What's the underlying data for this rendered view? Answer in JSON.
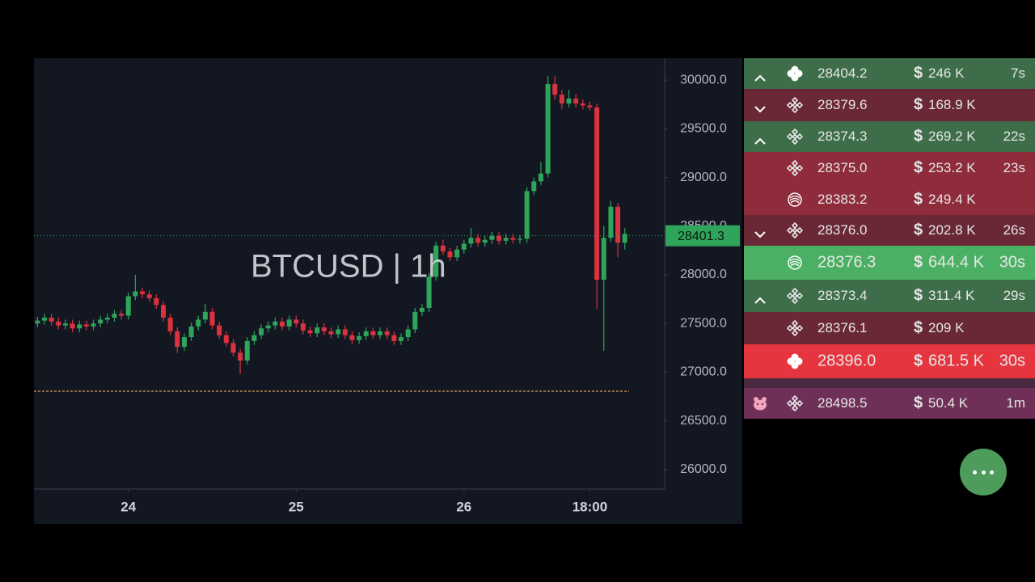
{
  "chart_data": {
    "type": "candlestick",
    "title": "BTCUSD | 1h",
    "x": [
      -13,
      -12,
      -11,
      -10,
      -9,
      -8,
      -7,
      -6,
      -5,
      -4,
      -3,
      -2,
      -1,
      0,
      1,
      2,
      3,
      4,
      5,
      6,
      7,
      8,
      9,
      10,
      11,
      12,
      13,
      14,
      15,
      16,
      17,
      18,
      19,
      20,
      21,
      22,
      23,
      24,
      25,
      26,
      27,
      28,
      29,
      30,
      31,
      32,
      33,
      34,
      35,
      36,
      37,
      38,
      39,
      40,
      41,
      42,
      43,
      44,
      45,
      46,
      47,
      48,
      49,
      50,
      51,
      52,
      53,
      54,
      55,
      56,
      57,
      58,
      59,
      60,
      61,
      62,
      63,
      64,
      65,
      66,
      67,
      68,
      69,
      70,
      71
    ],
    "open": [
      27500,
      27530,
      27560,
      27520,
      27480,
      27500,
      27450,
      27490,
      27470,
      27500,
      27540,
      27560,
      27600,
      27580,
      27780,
      27830,
      27800,
      27760,
      27690,
      27560,
      27420,
      27260,
      27360,
      27470,
      27540,
      27620,
      27480,
      27380,
      27300,
      27200,
      27120,
      27320,
      27380,
      27450,
      27480,
      27520,
      27470,
      27540,
      27500,
      27430,
      27400,
      27460,
      27420,
      27390,
      27440,
      27380,
      27330,
      27370,
      27420,
      27380,
      27420,
      27380,
      27320,
      27360,
      27440,
      27620,
      27660,
      27980,
      28300,
      28240,
      28180,
      28260,
      28320,
      28380,
      28330,
      28360,
      28400,
      28350,
      28380,
      28360,
      28370,
      28860,
      28960,
      29040,
      29960,
      29850,
      29760,
      29810,
      29760,
      29740,
      29720,
      27950,
      28380,
      28700,
      28330
    ],
    "high": [
      27570,
      27600,
      27600,
      27560,
      27540,
      27540,
      27530,
      27530,
      27540,
      27580,
      27600,
      27640,
      27640,
      27820,
      28000,
      27870,
      27840,
      27800,
      27730,
      27600,
      27460,
      27400,
      27510,
      27580,
      27700,
      27660,
      27520,
      27420,
      27340,
      27240,
      27360,
      27420,
      27490,
      27520,
      27560,
      27560,
      27580,
      27580,
      27540,
      27470,
      27500,
      27500,
      27460,
      27480,
      27480,
      27420,
      27410,
      27460,
      27460,
      27460,
      27460,
      27420,
      27400,
      27480,
      27660,
      27700,
      28020,
      28340,
      28360,
      28280,
      28300,
      28360,
      28480,
      28420,
      28400,
      28440,
      28440,
      28420,
      28420,
      28410,
      28900,
      29000,
      29160,
      30040,
      30040,
      29900,
      29900,
      29860,
      29800,
      29780,
      29760,
      28500,
      28760,
      28740,
      28480
    ],
    "low": [
      27460,
      27490,
      27480,
      27440,
      27440,
      27410,
      27410,
      27430,
      27430,
      27460,
      27500,
      27520,
      27540,
      27540,
      27740,
      27760,
      27720,
      27650,
      27520,
      27380,
      27200,
      27220,
      27320,
      27430,
      27500,
      27440,
      27340,
      27260,
      27160,
      26980,
      27080,
      27280,
      27340,
      27410,
      27440,
      27430,
      27430,
      27460,
      27390,
      27360,
      27360,
      27380,
      27350,
      27350,
      27340,
      27290,
      27290,
      27330,
      27340,
      27340,
      27340,
      27280,
      27280,
      27320,
      27400,
      27580,
      27620,
      27940,
      28200,
      28140,
      28140,
      28220,
      28280,
      28290,
      28290,
      28320,
      28310,
      28310,
      28320,
      28320,
      28330,
      28820,
      28920,
      29000,
      29800,
      29700,
      29720,
      29720,
      29700,
      29690,
      27650,
      27220,
      28340,
      28180,
      28260
    ],
    "close": [
      27530,
      27560,
      27520,
      27480,
      27500,
      27450,
      27490,
      27470,
      27500,
      27540,
      27560,
      27600,
      27580,
      27780,
      27830,
      27800,
      27760,
      27690,
      27560,
      27420,
      27260,
      27360,
      27470,
      27540,
      27620,
      27480,
      27380,
      27300,
      27200,
      27120,
      27320,
      27380,
      27450,
      27480,
      27520,
      27470,
      27540,
      27500,
      27430,
      27400,
      27460,
      27420,
      27390,
      27440,
      27380,
      27330,
      27370,
      27420,
      27380,
      27420,
      27380,
      27320,
      27360,
      27440,
      27620,
      27660,
      27980,
      28300,
      28240,
      28180,
      28260,
      28320,
      28380,
      28330,
      28360,
      28400,
      28350,
      28380,
      28360,
      28370,
      28860,
      28960,
      29040,
      29960,
      29850,
      29760,
      29810,
      29760,
      29740,
      29720,
      27950,
      28380,
      28700,
      28330,
      28420
    ],
    "up_color": "#2ea55a",
    "down_color": "#d8333f",
    "last_price": 28401.3,
    "xlim": [
      -13.5,
      76.7
    ],
    "xticks": [
      {
        "value": 0,
        "label": "24"
      },
      {
        "value": 24,
        "label": "25"
      },
      {
        "value": 48,
        "label": "26"
      },
      {
        "value": 66,
        "label": "18:00"
      }
    ],
    "ylim": [
      25800,
      30225
    ],
    "yticks": [
      {
        "value": 26000,
        "label": "26000.0"
      },
      {
        "value": 26500,
        "label": "26500.0"
      },
      {
        "value": 27000,
        "label": "27000.0"
      },
      {
        "value": 27500,
        "label": "27500.0"
      },
      {
        "value": 28000,
        "label": "28000.0"
      },
      {
        "value": 28500,
        "label": "28500.0"
      },
      {
        "value": 29000,
        "label": "29000.0"
      },
      {
        "value": 29500,
        "label": "29500.0"
      },
      {
        "value": 30000,
        "label": "30000.0"
      }
    ]
  },
  "trades": [
    {
      "price": "28404.2",
      "amount": "246 K",
      "age": "7s"
    },
    {
      "price": "28379.6",
      "amount": "168.9 K"
    },
    {
      "price": "28374.3",
      "amount": "269.2 K",
      "age": "22s"
    },
    {
      "price": "28375.0",
      "amount": "253.2 K",
      "age": "23s"
    },
    {
      "price": "28383.2",
      "amount": "249.4 K"
    },
    {
      "price": "28376.0",
      "amount": "202.8 K",
      "age": "26s"
    },
    {
      "price": "28376.3",
      "amount": "644.4 K",
      "age": "30s"
    },
    {
      "price": "28373.4",
      "amount": "311.4 K",
      "age": "29s"
    },
    {
      "price": "28376.1",
      "amount": "209 K"
    },
    {
      "price": "28396.0",
      "amount": "681.5 K",
      "age": "30s"
    },
    {
      "price": "28498.5",
      "amount": "50.4 K",
      "age": "1m"
    }
  ]
}
